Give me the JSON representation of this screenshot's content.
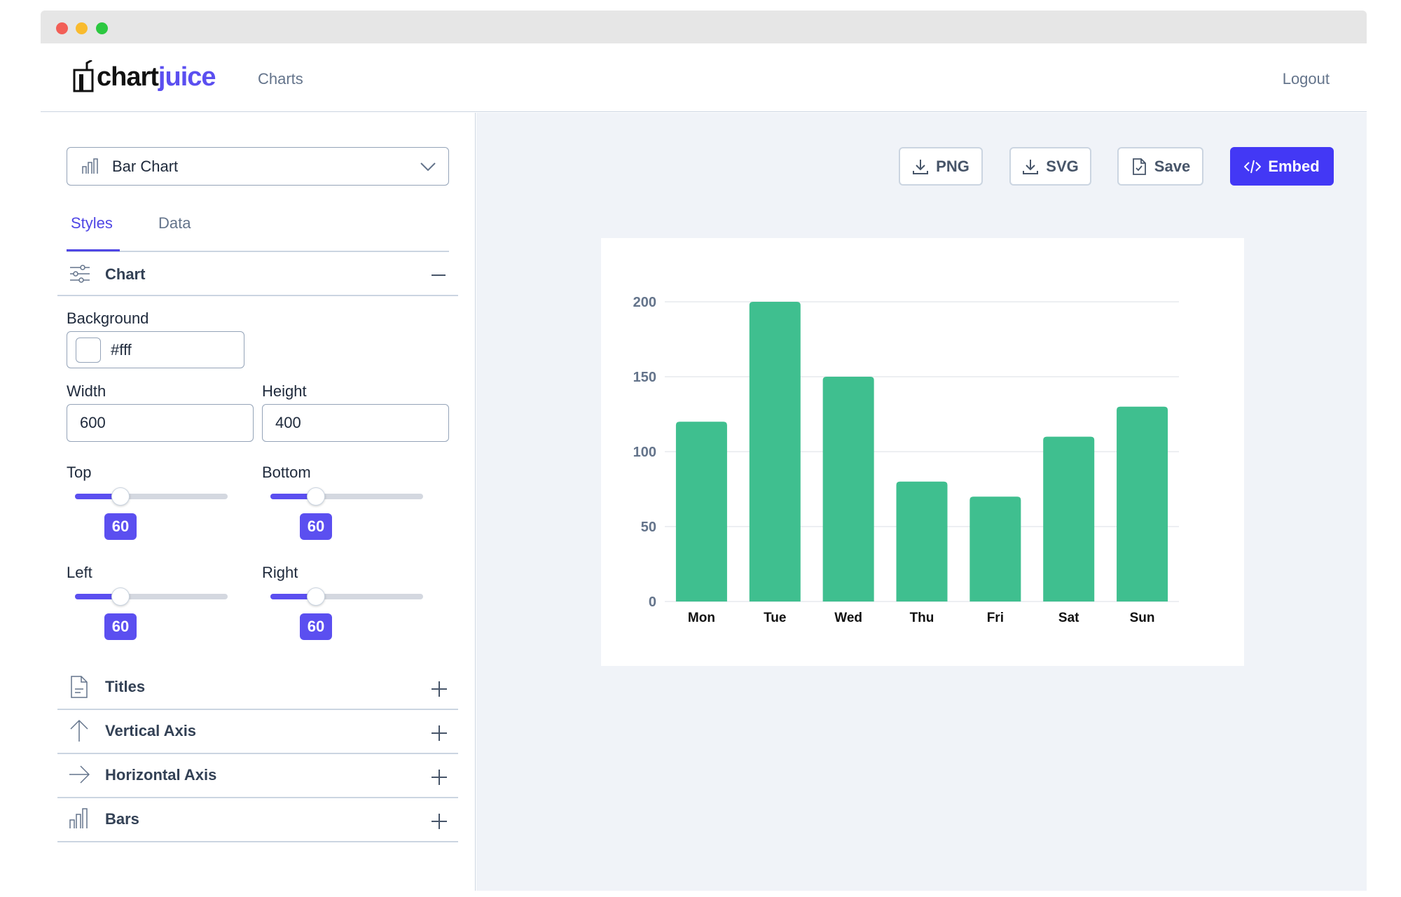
{
  "header": {
    "logo_prefix": "chart",
    "logo_suffix": "juice",
    "nav": "Charts",
    "logout": "Logout"
  },
  "sidebar": {
    "chart_type": "Bar Chart",
    "tabs": [
      "Styles",
      "Data"
    ],
    "section": "Chart",
    "background_label": "Background",
    "background": "#fff",
    "width_label": "Width",
    "width": 600,
    "height_label": "Height",
    "height": 400,
    "margins": [
      {
        "label": "Top",
        "value": 60
      },
      {
        "label": "Bottom",
        "value": 60
      },
      {
        "label": "Left",
        "value": 60
      },
      {
        "label": "Right",
        "value": 60
      }
    ],
    "sections": [
      "Titles",
      "Vertical Axis",
      "Horizontal Axis",
      "Bars"
    ]
  },
  "toolbar": {
    "buttons": [
      "PNG",
      "SVG",
      "Save",
      "Embed"
    ]
  },
  "chart": {
    "type": "bar",
    "categories": [
      "Mon",
      "Tue",
      "Wed",
      "Thu",
      "Fri",
      "Sat",
      "Sun"
    ],
    "values": [
      120,
      200,
      150,
      80,
      70,
      110,
      130
    ],
    "color": "#3fbf8f",
    "ylim": [
      0,
      200
    ],
    "yticks": [
      0,
      50,
      100,
      150,
      200
    ],
    "grid": true
  }
}
